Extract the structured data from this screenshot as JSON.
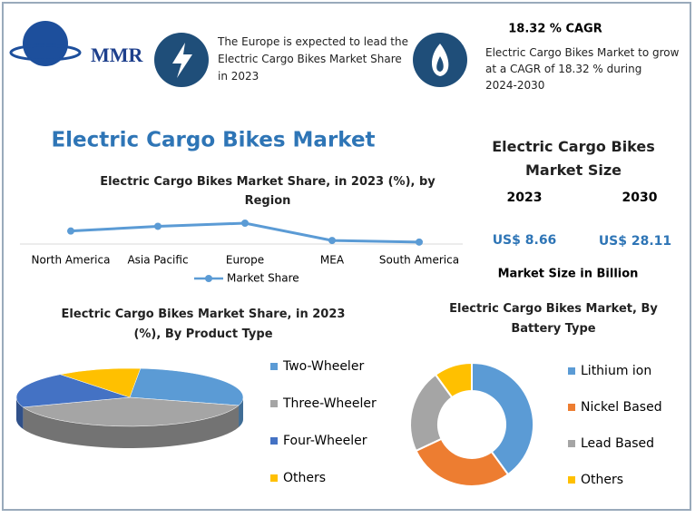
{
  "header": {
    "logo": "MMR",
    "note_1": "The Europe is expected to lead the Electric Cargo Bikes Market Share in 2023",
    "cagr_title": "18.32 % CAGR",
    "cagr_text": "Electric Cargo Bikes Market to grow at a CAGR of 18.32 % during 2024-2030"
  },
  "title": "Electric Cargo Bikes Market",
  "market_size": {
    "title": "Electric Cargo Bikes Market Size",
    "year_1": "2023",
    "year_2": "2030",
    "value_1": "US$ 8.66",
    "value_2": "US$ 28.11",
    "unit": "Market Size in Billion"
  },
  "chart_data": [
    {
      "type": "line",
      "title": "Electric Cargo Bikes Market Share, in 2023 (%), by Region",
      "categories": [
        "North America",
        "Asia Pacific",
        "Europe",
        "MEA",
        "South America"
      ],
      "series": [
        {
          "name": "Market Share",
          "color": "#5b9bd5",
          "values": [
            23,
            32,
            38,
            5,
            2
          ]
        }
      ]
    },
    {
      "type": "pie3d",
      "title": "Electric Cargo Bikes Market Share, in 2023 (%), By Product Type",
      "categories": [
        "Two-Wheeler",
        "Three-Wheeler",
        "Four-Wheeler",
        "Others"
      ],
      "values": [
        28,
        40,
        20,
        12
      ],
      "colors": [
        "#5b9bd5",
        "#a5a5a5",
        "#4472c4",
        "#ffc000"
      ]
    },
    {
      "type": "donut",
      "title": "Electric Cargo Bikes Market, By Battery Type",
      "categories": [
        "Lithium ion",
        "Nickel Based",
        "Lead Based",
        "Others"
      ],
      "values": [
        40,
        28,
        22,
        10
      ],
      "colors": [
        "#5b9bd5",
        "#ed7d31",
        "#a5a5a5",
        "#ffc000"
      ]
    }
  ]
}
